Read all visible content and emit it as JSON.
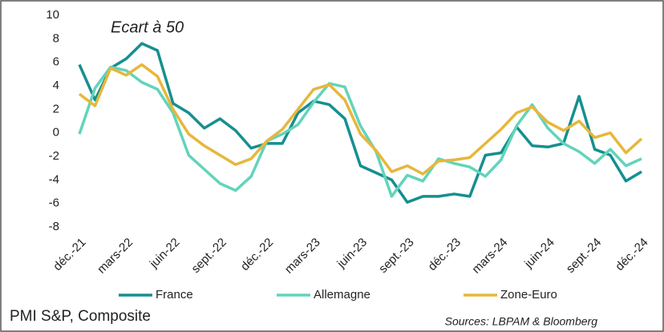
{
  "chart_data": {
    "type": "line",
    "title": "Ecart à 50",
    "subtitle": "PMI S&P, Composite",
    "source": "Sources: LBPAM & Bloomberg",
    "categories": [
      "déc.-21",
      null,
      null,
      "mars-22",
      null,
      null,
      "juin-22",
      null,
      null,
      "sept.-22",
      null,
      null,
      "déc.-22",
      null,
      null,
      "mars-23",
      null,
      null,
      "juin-23",
      null,
      null,
      "sept.-23",
      null,
      null,
      "déc.-23",
      null,
      null,
      "mars-24",
      null,
      null,
      "juin-24",
      null,
      null,
      "sept.-24",
      null,
      null,
      "déc.-24"
    ],
    "series": [
      {
        "name": "France",
        "color": "#168f90",
        "values": [
          5.8,
          2.8,
          5.5,
          6.3,
          7.6,
          7.0,
          2.5,
          1.7,
          0.4,
          1.2,
          0.2,
          -1.3,
          -0.9,
          -0.9,
          1.7,
          2.7,
          2.4,
          1.2,
          -2.8,
          -3.4,
          -4.0,
          -5.9,
          -5.4,
          -5.4,
          -5.2,
          -5.4,
          -1.9,
          -1.7,
          0.5,
          -1.1,
          -1.2,
          -0.9,
          3.1,
          -1.4,
          -1.9,
          -4.1,
          -3.3
        ]
      },
      {
        "name": "Allemagne",
        "color": "#62d4ba",
        "values": [
          -0.1,
          3.8,
          5.6,
          5.3,
          4.3,
          3.7,
          1.7,
          -1.9,
          -3.1,
          -4.3,
          -4.9,
          -3.7,
          -0.7,
          -0.1,
          0.7,
          2.6,
          4.2,
          3.9,
          0.6,
          -1.6,
          -5.4,
          -3.6,
          -4.1,
          -2.2,
          -2.6,
          -2.9,
          -3.7,
          -2.3,
          0.6,
          2.4,
          0.4,
          -0.9,
          -1.6,
          -2.6,
          -1.4,
          -2.8,
          -2.2
        ]
      },
      {
        "name": "Zone-Euro",
        "color": "#e6b73c",
        "values": [
          3.3,
          2.3,
          5.5,
          4.9,
          5.8,
          4.8,
          2.0,
          -0.1,
          -1.1,
          -1.9,
          -2.7,
          -2.2,
          -0.7,
          0.3,
          2.0,
          3.7,
          4.1,
          2.8,
          -0.1,
          -1.5,
          -3.3,
          -2.8,
          -3.5,
          -2.4,
          -2.3,
          -2.1,
          -0.9,
          0.3,
          1.7,
          2.2,
          0.9,
          0.2,
          1.0,
          -0.4,
          0.0,
          -1.7,
          -0.5
        ]
      }
    ],
    "ylim": [
      -8,
      10
    ],
    "yticks": [
      -8,
      -6,
      -4,
      -2,
      0,
      2,
      4,
      6,
      8,
      10
    ],
    "grid": false
  }
}
